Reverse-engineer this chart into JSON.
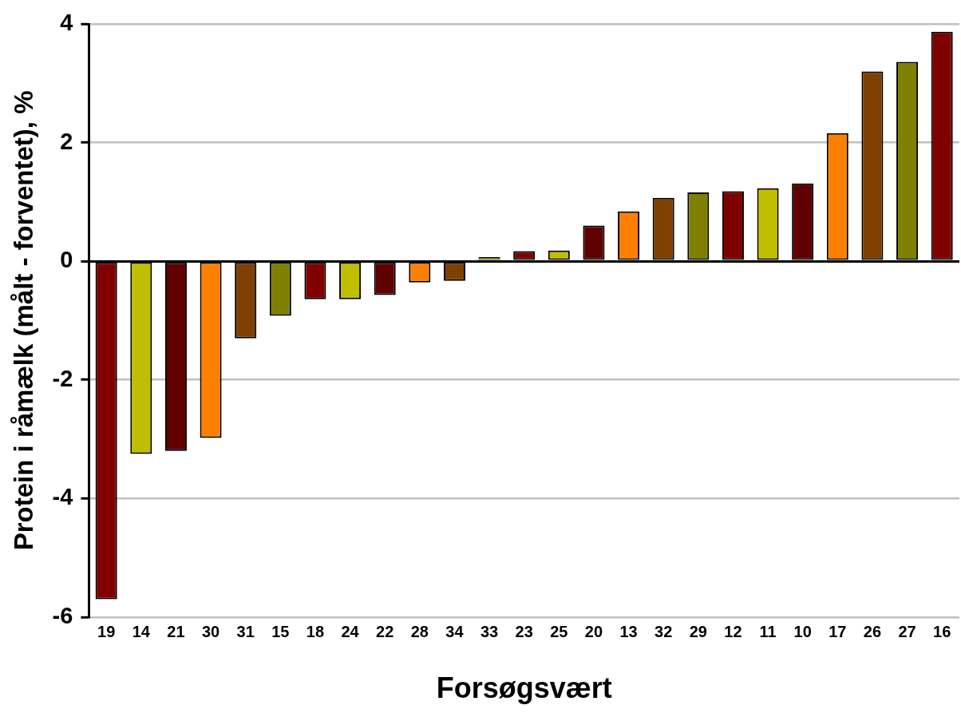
{
  "chart_data": {
    "type": "bar",
    "xlabel": "Forsøgsvært",
    "ylabel": "Protein i råmælk (målt - forventet), %",
    "categories": [
      "19",
      "14",
      "21",
      "30",
      "31",
      "15",
      "18",
      "24",
      "22",
      "28",
      "34",
      "33",
      "23",
      "25",
      "20",
      "13",
      "32",
      "29",
      "12",
      "11",
      "10",
      "17",
      "26",
      "27",
      "16"
    ],
    "values": [
      -5.7,
      -3.25,
      -3.2,
      -2.98,
      -1.3,
      -0.92,
      -0.64,
      -0.64,
      -0.57,
      -0.36,
      -0.33,
      0.07,
      0.17,
      0.18,
      0.6,
      0.84,
      1.07,
      1.16,
      1.18,
      1.23,
      1.31,
      2.16,
      3.2,
      3.36,
      3.87
    ],
    "colors": [
      "#800000",
      "#bfbf00",
      "#600000",
      "#ff8000",
      "#804000",
      "#808000",
      "#800000",
      "#bfbf00",
      "#600000",
      "#ff8000",
      "#804000",
      "#808000",
      "#800000",
      "#bfbf00",
      "#600000",
      "#ff8000",
      "#804000",
      "#808000",
      "#800000",
      "#bfbf00",
      "#600000",
      "#ff8000",
      "#804000",
      "#808000",
      "#800000"
    ],
    "ylim": [
      -6,
      4
    ],
    "yticks": [
      -6,
      -4,
      -2,
      0,
      2,
      4
    ],
    "grid": "y",
    "legend": false
  }
}
